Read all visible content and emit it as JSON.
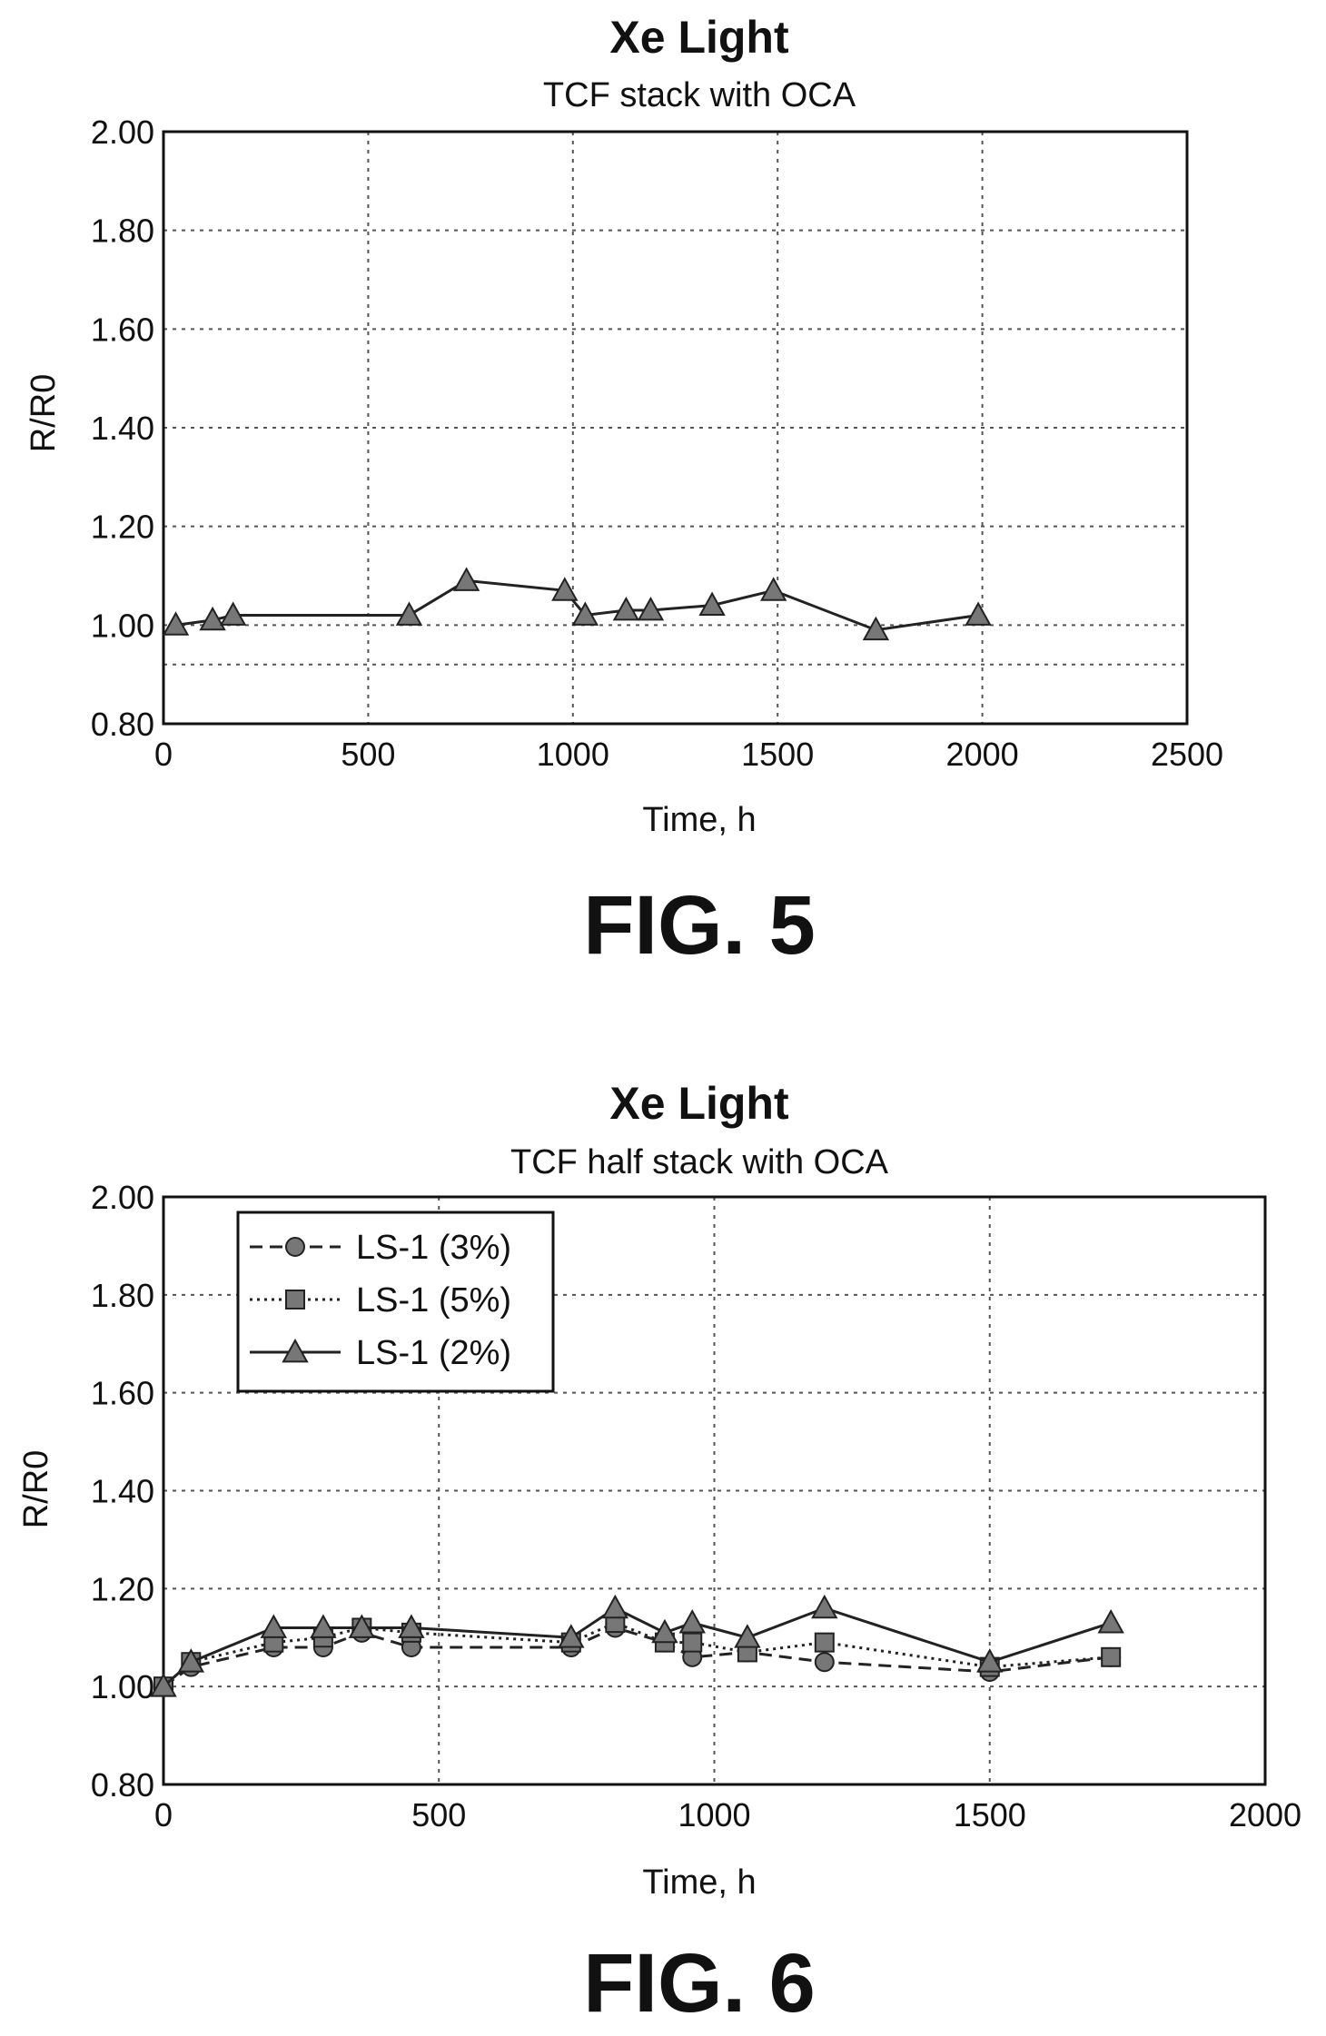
{
  "chart_data": [
    {
      "type": "line",
      "title": "Xe Light",
      "subtitle": "TCF stack with OCA",
      "xlabel": "Time, h",
      "ylabel": "R/R0",
      "xlim": [
        0,
        2500
      ],
      "ylim": [
        0.8,
        2.0
      ],
      "xticks": [
        "0",
        "500",
        "1000",
        "1500",
        "2000",
        "2500"
      ],
      "yticks": [
        "0.80",
        "1.00",
        "1.20",
        "1.40",
        "1.60",
        "1.80",
        "2.00"
      ],
      "grid": true,
      "figure_label": "FIG. 5",
      "series": [
        {
          "marker": "triangle",
          "style": "solid",
          "x": [
            30,
            120,
            170,
            600,
            740,
            980,
            1030,
            1130,
            1190,
            1340,
            1490,
            1740,
            1990
          ],
          "y": [
            1.0,
            1.01,
            1.02,
            1.02,
            1.09,
            1.07,
            1.02,
            1.03,
            1.03,
            1.04,
            1.07,
            0.99,
            1.02
          ]
        }
      ]
    },
    {
      "type": "line",
      "title": "Xe Light",
      "subtitle": "TCF half stack with OCA",
      "xlabel": "Time, h",
      "ylabel": "R/R0",
      "xlim": [
        0,
        2000
      ],
      "ylim": [
        0.8,
        2.0
      ],
      "xticks": [
        "0",
        "500",
        "1000",
        "1500",
        "2000"
      ],
      "yticks": [
        "0.80",
        "1.00",
        "1.20",
        "1.40",
        "1.60",
        "1.80",
        "2.00"
      ],
      "grid": true,
      "legend": "top-left",
      "figure_label": "FIG. 6",
      "series": [
        {
          "name": "LS-1 (3%)",
          "marker": "circle",
          "style": "dashed",
          "x": [
            0,
            50,
            200,
            290,
            360,
            450,
            740,
            820,
            910,
            960,
            1060,
            1200,
            1500,
            1720
          ],
          "y": [
            1.0,
            1.04,
            1.08,
            1.08,
            1.11,
            1.08,
            1.08,
            1.12,
            1.09,
            1.06,
            1.07,
            1.05,
            1.03,
            1.06
          ]
        },
        {
          "name": "LS-1 (5%)",
          "marker": "square",
          "style": "dotted",
          "x": [
            0,
            50,
            200,
            290,
            360,
            450,
            740,
            820,
            910,
            960,
            1060,
            1200,
            1500,
            1720
          ],
          "y": [
            1.0,
            1.05,
            1.09,
            1.1,
            1.12,
            1.11,
            1.09,
            1.13,
            1.09,
            1.09,
            1.07,
            1.09,
            1.04,
            1.06
          ]
        },
        {
          "name": "LS-1 (2%)",
          "marker": "triangle",
          "style": "solid",
          "x": [
            0,
            50,
            200,
            290,
            360,
            450,
            740,
            820,
            910,
            960,
            1060,
            1200,
            1500,
            1720
          ],
          "y": [
            1.0,
            1.05,
            1.12,
            1.12,
            1.12,
            1.12,
            1.1,
            1.16,
            1.11,
            1.13,
            1.1,
            1.16,
            1.05,
            1.13
          ]
        }
      ]
    }
  ]
}
